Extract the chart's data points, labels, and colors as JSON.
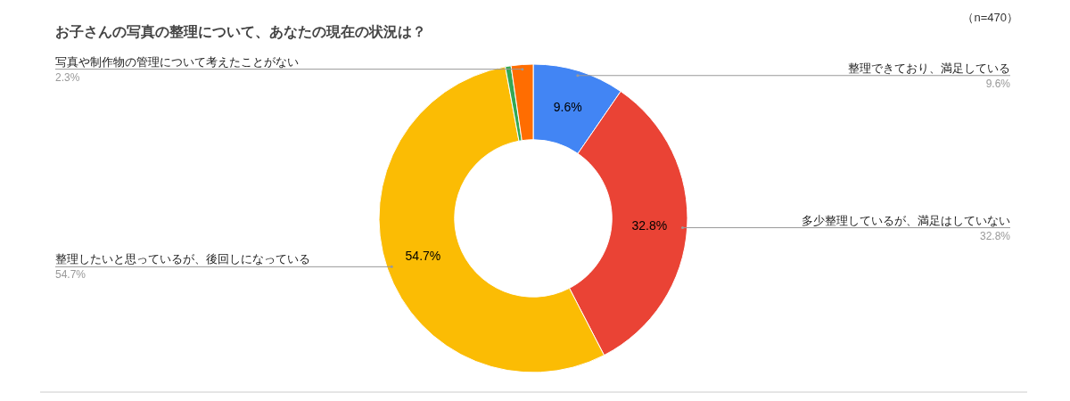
{
  "chart_data": {
    "type": "donut",
    "title": "お子さんの写真の整理について、あなたの現在の状況は？",
    "categories": [
      "整理できており、満足している",
      "多少整理しているが、満足はしていない",
      "整理したいと思っているが、後回しになっている",
      null,
      "写真や制作物の管理について考えたことがない"
    ],
    "values": [
      9.6,
      32.8,
      54.7,
      0.6,
      2.3
    ],
    "value_labels": [
      "9.6%",
      "32.8%",
      "54.7%",
      null,
      "2.3%"
    ],
    "colors": [
      "#4285f4",
      "#ea4335",
      "#fbbc04",
      "#34a853",
      "#ff6d01"
    ],
    "annotations": [
      "（n=470）"
    ]
  }
}
